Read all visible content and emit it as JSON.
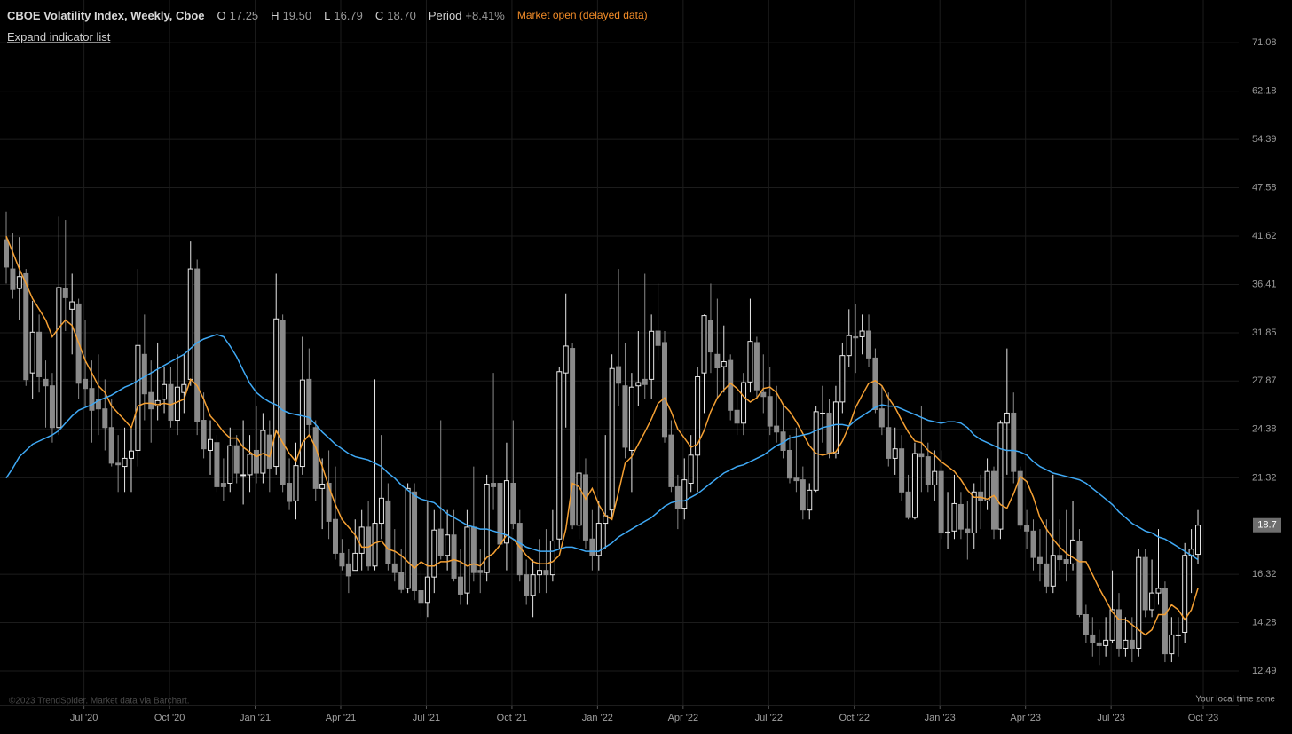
{
  "header": {
    "title": "CBOE Volatility Index, Weekly, Cboe",
    "ohlc": [
      {
        "label": "O",
        "value": "17.25"
      },
      {
        "label": "H",
        "value": "19.50"
      },
      {
        "label": "L",
        "value": "16.79"
      },
      {
        "label": "C",
        "value": "18.70"
      }
    ],
    "period_label": "Period",
    "period_change": "+8.41%",
    "status": "Market open (delayed data)",
    "expand_link": "Expand indicator list"
  },
  "footer": {
    "credit": "©2023 TrendSpider. Market data via Barchart.",
    "timezone": "Your local time zone"
  },
  "chart_data": {
    "type": "candlestick",
    "log_scale": true,
    "grid": true,
    "up_color": "#e8e8e8",
    "down_color": "#8a8a8a",
    "ylim": [
      11.35,
      80.0
    ],
    "yticks": [
      71.08,
      62.18,
      54.39,
      47.58,
      41.62,
      36.41,
      31.85,
      27.87,
      24.38,
      21.32,
      16.32,
      14.28,
      12.49
    ],
    "categories": [
      null,
      null,
      null,
      null,
      null,
      null,
      null,
      null,
      null,
      null,
      null,
      "Jul '20",
      null,
      null,
      null,
      null,
      null,
      null,
      null,
      null,
      null,
      null,
      null,
      null,
      "Oct '20",
      null,
      null,
      null,
      null,
      null,
      null,
      null,
      null,
      null,
      null,
      null,
      null,
      "Jan '21",
      null,
      null,
      null,
      null,
      null,
      null,
      null,
      null,
      null,
      null,
      null,
      null,
      "Apr '21",
      null,
      null,
      null,
      null,
      null,
      null,
      null,
      null,
      null,
      null,
      null,
      null,
      "Jul '21",
      null,
      null,
      null,
      null,
      null,
      null,
      null,
      null,
      null,
      null,
      null,
      null,
      "Oct '21",
      null,
      null,
      null,
      null,
      null,
      null,
      null,
      null,
      null,
      null,
      null,
      null,
      "Jan '22",
      null,
      null,
      null,
      null,
      null,
      null,
      null,
      null,
      null,
      null,
      null,
      null,
      "Apr '22",
      null,
      null,
      null,
      null,
      null,
      null,
      null,
      null,
      null,
      null,
      null,
      null,
      "Jul '22",
      null,
      null,
      null,
      null,
      null,
      null,
      null,
      null,
      null,
      null,
      null,
      null,
      "Oct '22",
      null,
      null,
      null,
      null,
      null,
      null,
      null,
      null,
      null,
      null,
      null,
      null,
      "Jan '23",
      null,
      null,
      null,
      null,
      null,
      null,
      null,
      null,
      null,
      null,
      null,
      null,
      "Apr '23",
      null,
      null,
      null,
      null,
      null,
      null,
      null,
      null,
      null,
      null,
      null,
      null,
      "Jul '23",
      null,
      null,
      null,
      null,
      null,
      null,
      null,
      null,
      null,
      null,
      null,
      null,
      null,
      "Oct '23"
    ],
    "open": [
      41.2,
      38.0,
      36.0,
      37.5,
      28.5,
      31.9,
      28.0,
      27.5,
      24.5,
      36.0,
      34.0,
      34.5,
      28.0,
      27.3,
      26.5,
      25.8,
      24.5,
      22.2,
      22.0,
      22.5,
      23.0,
      30.0,
      27.0,
      26.0,
      26.5,
      27.6,
      25.0,
      27.0,
      28.0,
      38.0,
      25.0,
      23.0,
      23.5,
      21.0,
      21.0,
      23.3,
      21.5,
      21.5,
      23.0,
      21.6,
      24.0,
      22.0,
      33.0,
      21.0,
      20.0,
      22.0,
      28.0,
      24.5,
      20.7,
      21.0,
      19.0,
      17.3,
      16.8,
      16.5,
      17.3,
      18.6,
      16.7,
      18.8,
      20.0,
      16.8,
      16.4,
      15.7,
      20.5,
      15.6,
      15.1,
      16.2,
      18.5,
      17.2,
      18.2,
      16.2,
      15.5,
      18.6,
      16.5,
      16.4,
      21.0,
      21.0,
      17.8,
      21.0,
      18.8,
      16.3,
      15.4,
      16.3,
      16.5,
      16.3,
      18.0,
      28.5,
      30.5,
      18.7,
      21.5,
      18.0,
      17.2,
      18.8,
      19.5,
      29.0,
      27.5,
      23.0,
      27.5,
      28.0,
      28.0,
      32.0,
      31.0,
      24.0,
      20.8,
      19.6,
      21.0,
      22.7,
      28.5,
      33.0,
      30.0,
      29.0,
      29.5,
      25.7,
      24.8,
      27.8,
      31.0,
      27.0,
      26.7,
      24.6,
      24.2,
      23.0,
      21.3,
      21.2,
      19.5,
      20.6,
      25.5,
      25.5,
      22.8,
      26.3,
      29.9,
      31.5,
      31.5,
      32.0,
      29.7,
      25.8,
      24.5,
      22.5,
      23.1,
      20.5,
      19.1,
      22.8,
      22.6,
      20.9,
      21.7,
      18.3,
      18.4,
      19.8,
      18.5,
      18.3,
      20.5,
      20.0,
      21.7,
      18.5,
      24.8,
      25.5,
      21.7,
      18.7,
      18.4,
      17.1,
      16.8,
      15.8,
      17.2,
      17.0,
      16.8,
      17.9,
      14.6,
      13.8,
      13.5,
      13.4,
      13.6,
      14.8,
      13.3,
      13.6,
      13.3,
      17.1,
      14.8,
      15.5,
      15.7,
      13.1,
      13.8,
      13.9,
      17.2,
      17.25
    ],
    "high": [
      44.5,
      42.0,
      41.5,
      38.0,
      34.8,
      33.5,
      29.5,
      28.5,
      44.0,
      43.5,
      37.5,
      35.0,
      33.0,
      29.5,
      30.0,
      28.0,
      26.5,
      24.0,
      24.5,
      24.5,
      38.0,
      33.5,
      29.5,
      31.0,
      29.0,
      29.0,
      30.0,
      30.0,
      41.0,
      39.0,
      27.0,
      25.0,
      24.0,
      22.5,
      24.5,
      24.0,
      25.0,
      24.0,
      26.0,
      25.5,
      25.0,
      37.5,
      33.5,
      22.5,
      23.5,
      31.5,
      30.5,
      25.0,
      22.5,
      23.0,
      22.0,
      18.0,
      17.5,
      19.0,
      19.5,
      20.0,
      28.0,
      24.0,
      21.0,
      18.5,
      17.5,
      21.0,
      21.0,
      16.5,
      20.0,
      19.5,
      25.0,
      19.5,
      19.5,
      17.5,
      19.5,
      22.0,
      17.5,
      21.5,
      28.5,
      23.0,
      23.5,
      25.0,
      19.5,
      17.0,
      17.0,
      18.0,
      18.5,
      19.5,
      29.0,
      35.5,
      31.0,
      24.0,
      22.5,
      19.5,
      20.0,
      24.0,
      30.0,
      38.0,
      31.0,
      28.5,
      32.0,
      37.5,
      33.5,
      36.5,
      32.0,
      25.0,
      21.5,
      22.5,
      24.0,
      29.0,
      33.5,
      36.5,
      35.0,
      32.5,
      30.0,
      27.0,
      28.5,
      35.0,
      31.5,
      30.0,
      29.0,
      27.5,
      26.0,
      24.0,
      24.5,
      22.0,
      21.0,
      26.0,
      27.5,
      26.5,
      27.5,
      31.0,
      34.0,
      34.5,
      33.5,
      33.5,
      30.5,
      27.5,
      27.0,
      24.5,
      24.0,
      21.5,
      23.5,
      26.0,
      23.5,
      23.0,
      23.0,
      20.5,
      21.5,
      20.5,
      20.0,
      21.0,
      21.5,
      22.5,
      22.0,
      25.0,
      30.5,
      27.0,
      22.0,
      19.5,
      19.0,
      18.5,
      19.0,
      21.5,
      19.0,
      19.5,
      20.0,
      18.5,
      15.0,
      14.5,
      14.0,
      14.5,
      16.5,
      15.5,
      14.5,
      14.5,
      17.5,
      17.5,
      17.0,
      18.5,
      16.0,
      14.5,
      14.5,
      17.8,
      18.5,
      19.5
    ],
    "low": [
      36.5,
      35.0,
      33.0,
      27.5,
      26.5,
      27.0,
      24.5,
      23.5,
      24.0,
      32.0,
      30.0,
      26.5,
      26.0,
      23.5,
      24.0,
      23.0,
      22.0,
      20.5,
      20.5,
      20.5,
      22.0,
      25.0,
      23.5,
      25.0,
      25.5,
      24.5,
      24.0,
      25.5,
      27.5,
      24.0,
      22.5,
      21.5,
      20.5,
      20.0,
      20.5,
      21.0,
      19.8,
      20.5,
      21.0,
      21.0,
      20.5,
      21.5,
      20.5,
      19.5,
      19.0,
      21.5,
      24.0,
      20.0,
      18.5,
      18.0,
      17.0,
      16.5,
      15.5,
      16.5,
      16.5,
      16.5,
      16.5,
      18.0,
      16.5,
      16.0,
      15.5,
      15.5,
      15.2,
      14.5,
      14.5,
      15.5,
      17.0,
      16.5,
      16.0,
      15.0,
      15.0,
      16.0,
      15.5,
      16.0,
      19.5,
      17.5,
      16.5,
      18.5,
      16.0,
      15.0,
      14.5,
      15.5,
      15.5,
      16.0,
      17.5,
      24.5,
      18.5,
      18.0,
      17.5,
      16.5,
      16.5,
      17.5,
      19.0,
      26.0,
      22.5,
      20.5,
      26.0,
      26.5,
      26.5,
      29.5,
      23.5,
      20.5,
      18.5,
      19.0,
      20.5,
      20.5,
      25.5,
      28.5,
      26.5,
      27.0,
      25.0,
      24.0,
      24.0,
      27.0,
      26.5,
      25.5,
      24.0,
      23.5,
      22.5,
      21.0,
      20.5,
      19.0,
      19.0,
      20.5,
      23.5,
      22.5,
      22.5,
      25.5,
      29.0,
      28.5,
      30.0,
      29.0,
      25.5,
      24.0,
      22.0,
      21.5,
      20.0,
      19.0,
      19.0,
      20.5,
      20.5,
      20.0,
      18.0,
      17.5,
      18.0,
      18.0,
      17.0,
      17.5,
      18.5,
      19.5,
      18.0,
      18.0,
      21.5,
      21.0,
      18.5,
      17.5,
      16.5,
      16.0,
      15.5,
      15.5,
      16.5,
      16.0,
      16.5,
      14.5,
      13.5,
      13.0,
      12.7,
      13.0,
      13.5,
      13.0,
      13.0,
      12.8,
      13.0,
      14.5,
      14.5,
      15.0,
      12.8,
      12.8,
      13.0,
      13.5,
      15.5,
      16.79
    ],
    "close": [
      38.2,
      35.9,
      37.2,
      27.98,
      31.9,
      28.2,
      27.5,
      24.5,
      36.1,
      35.1,
      34.7,
      27.7,
      27.3,
      25.7,
      25.8,
      24.5,
      22.2,
      22.1,
      22.5,
      22.96,
      30.75,
      26.9,
      25.8,
      26.4,
      27.6,
      25.0,
      27.4,
      27.6,
      38.0,
      24.9,
      23.1,
      23.7,
      20.8,
      20.8,
      23.3,
      21.6,
      21.5,
      22.75,
      21.6,
      24.3,
      21.9,
      33.1,
      20.9,
      19.97,
      22.05,
      27.95,
      24.7,
      20.7,
      20.95,
      18.9,
      17.3,
      16.7,
      16.25,
      17.3,
      18.6,
      16.7,
      18.8,
      20.15,
      16.8,
      16.4,
      15.65,
      20.7,
      15.6,
      15.1,
      16.2,
      18.45,
      17.2,
      18.2,
      16.15,
      15.45,
      18.6,
      16.4,
      16.4,
      20.95,
      20.8,
      17.75,
      21.15,
      18.8,
      16.3,
      15.4,
      16.3,
      16.5,
      16.3,
      17.9,
      28.6,
      30.7,
      18.7,
      21.6,
      17.95,
      17.2,
      18.8,
      19.2,
      28.85,
      27.7,
      23.2,
      27.4,
      27.75,
      27.6,
      31.98,
      30.75,
      23.9,
      20.8,
      19.6,
      21.2,
      22.7,
      28.2,
      33.4,
      30.2,
      28.9,
      29.4,
      25.7,
      24.8,
      27.75,
      31.1,
      27.2,
      26.7,
      24.6,
      24.2,
      23.0,
      21.3,
      21.15,
      19.5,
      20.6,
      25.6,
      25.5,
      22.8,
      26.3,
      29.9,
      31.6,
      31.4,
      32.0,
      29.7,
      25.75,
      24.55,
      22.5,
      23.1,
      20.5,
      19.1,
      22.8,
      22.6,
      20.9,
      21.7,
      18.3,
      18.35,
      19.85,
      18.5,
      18.3,
      20.5,
      20.0,
      21.7,
      18.5,
      24.8,
      25.5,
      21.7,
      18.7,
      18.4,
      17.1,
      16.8,
      15.8,
      17.2,
      17.0,
      16.8,
      17.95,
      14.6,
      13.8,
      13.5,
      13.4,
      13.6,
      14.8,
      13.3,
      13.6,
      13.3,
      17.1,
      14.8,
      15.5,
      15.7,
      13.1,
      13.8,
      13.8,
      17.2,
      17.5,
      18.7
    ],
    "series": [
      {
        "color": "#f5a033",
        "values": [
          41.6,
          39.8,
          38.0,
          36.5,
          35.0,
          34.0,
          33.0,
          31.5,
          32.3,
          33.0,
          32.5,
          31.0,
          29.5,
          28.5,
          27.5,
          27.0,
          26.0,
          25.5,
          25.0,
          24.5,
          26.0,
          26.2,
          26.2,
          26.1,
          26.2,
          26.1,
          26.3,
          26.5,
          28.0,
          27.5,
          26.5,
          25.3,
          24.8,
          24.2,
          23.8,
          23.8,
          23.2,
          22.9,
          22.6,
          22.8,
          22.6,
          24.3,
          23.5,
          22.8,
          22.3,
          23.5,
          24.0,
          23.2,
          22.0,
          20.8,
          19.8,
          19.0,
          18.6,
          18.2,
          17.6,
          17.6,
          17.8,
          17.9,
          17.5,
          17.4,
          17.2,
          16.9,
          16.6,
          16.9,
          16.7,
          16.7,
          16.9,
          16.9,
          17.0,
          16.9,
          16.7,
          16.8,
          16.7,
          17.1,
          17.3,
          17.7,
          18.2,
          18.0,
          17.6,
          17.2,
          16.9,
          16.8,
          16.8,
          16.9,
          17.2,
          18.5,
          21.0,
          20.8,
          20.1,
          20.7,
          19.8,
          19.2,
          19.0,
          20.5,
          22.2,
          22.6,
          23.4,
          24.2,
          25.1,
          26.2,
          26.6,
          25.6,
          24.4,
          23.8,
          23.2,
          23.4,
          24.3,
          25.6,
          26.6,
          27.2,
          27.7,
          27.3,
          26.7,
          26.3,
          26.6,
          27.3,
          27.4,
          27.0,
          26.1,
          25.6,
          24.9,
          24.1,
          23.3,
          22.8,
          22.7,
          22.8,
          22.9,
          23.6,
          24.6,
          25.9,
          26.8,
          27.7,
          27.9,
          27.5,
          26.6,
          25.9,
          25.0,
          24.2,
          23.6,
          23.5,
          23.0,
          22.7,
          22.3,
          22.0,
          21.7,
          21.2,
          20.6,
          20.2,
          20.2,
          20.1,
          20.3,
          19.8,
          19.6,
          20.4,
          21.4,
          21.1,
          20.2,
          19.1,
          18.5,
          18.0,
          17.6,
          17.3,
          17.1,
          16.9,
          16.9,
          16.3,
          15.7,
          15.2,
          14.7,
          14.4,
          14.4,
          14.2,
          14.0,
          13.8,
          14.0,
          14.6,
          14.6,
          15.0,
          14.8,
          14.4,
          14.8,
          15.7
        ]
      },
      {
        "color": "#3fa9f5",
        "values": [
          21.3,
          21.9,
          22.6,
          23.0,
          23.4,
          23.6,
          23.8,
          24.0,
          24.3,
          24.8,
          25.3,
          25.7,
          25.9,
          26.1,
          26.4,
          26.6,
          26.8,
          27.1,
          27.4,
          27.6,
          27.9,
          28.2,
          28.5,
          28.8,
          29.1,
          29.4,
          29.7,
          30.0,
          30.5,
          31.0,
          31.3,
          31.5,
          31.7,
          31.5,
          30.7,
          29.8,
          28.7,
          27.7,
          27.0,
          26.6,
          26.3,
          26.1,
          25.7,
          25.5,
          25.4,
          25.3,
          25.2,
          24.7,
          24.2,
          23.8,
          23.4,
          23.1,
          22.8,
          22.6,
          22.5,
          22.4,
          22.2,
          22.0,
          21.6,
          21.3,
          20.9,
          20.6,
          20.3,
          20.1,
          20.0,
          19.9,
          19.6,
          19.3,
          19.1,
          18.9,
          18.7,
          18.6,
          18.5,
          18.5,
          18.4,
          18.3,
          18.2,
          18.0,
          17.8,
          17.6,
          17.5,
          17.4,
          17.4,
          17.4,
          17.5,
          17.6,
          17.6,
          17.5,
          17.4,
          17.4,
          17.4,
          17.6,
          17.8,
          18.1,
          18.3,
          18.5,
          18.7,
          18.9,
          19.1,
          19.4,
          19.7,
          19.9,
          20.0,
          20.0,
          20.2,
          20.4,
          20.7,
          21.0,
          21.3,
          21.6,
          21.8,
          22.0,
          22.1,
          22.3,
          22.5,
          22.7,
          23.0,
          23.3,
          23.5,
          23.8,
          23.9,
          24.0,
          24.1,
          24.3,
          24.5,
          24.6,
          24.7,
          24.7,
          24.6,
          25.0,
          25.3,
          25.6,
          25.9,
          26.1,
          26.0,
          26.0,
          25.8,
          25.6,
          25.4,
          25.2,
          25.0,
          24.9,
          24.8,
          24.9,
          24.9,
          24.8,
          24.5,
          24.0,
          23.7,
          23.5,
          23.3,
          23.1,
          23.0,
          23.0,
          22.9,
          22.7,
          22.3,
          22.0,
          21.8,
          21.6,
          21.5,
          21.4,
          21.3,
          21.2,
          21.0,
          20.7,
          20.4,
          20.1,
          19.8,
          19.4,
          19.1,
          18.8,
          18.6,
          18.4,
          18.3,
          18.1,
          18.0,
          17.8,
          17.6,
          17.4,
          17.2,
          17.0
        ]
      }
    ]
  }
}
